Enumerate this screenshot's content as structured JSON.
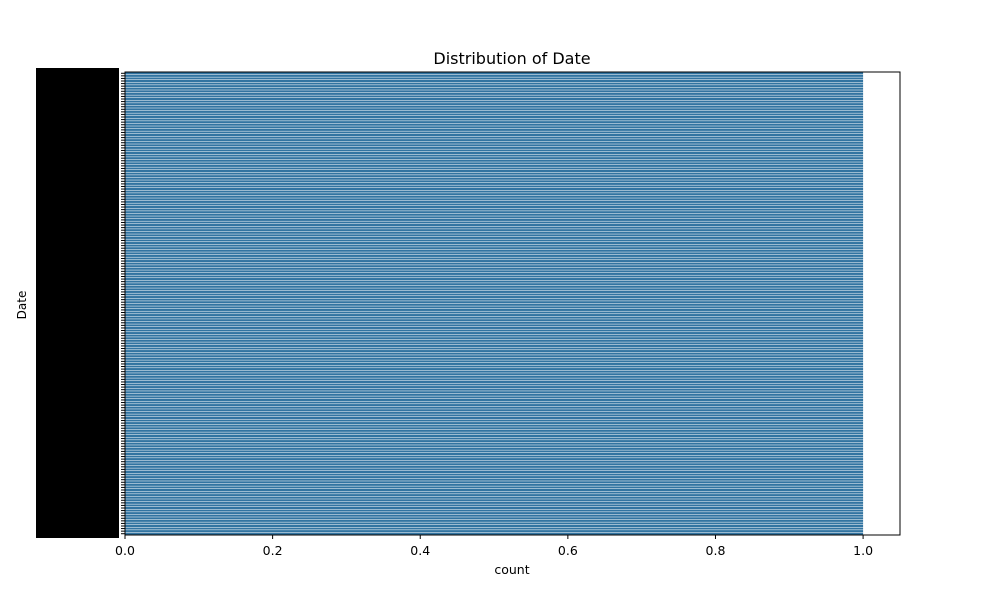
{
  "chart_data": {
    "type": "bar",
    "orientation": "horizontal",
    "title": "Distribution of Date",
    "xlabel": "count",
    "ylabel": "Date",
    "xlim": [
      0,
      1.05
    ],
    "xticks": [
      "0.0",
      "0.2",
      "0.4",
      "0.6",
      "0.8",
      "1.0"
    ],
    "xtick_values": [
      0,
      0.2,
      0.4,
      0.6,
      0.8,
      1.0
    ],
    "category_count": 180,
    "value_per_category": 1,
    "grid": false,
    "legend": "none",
    "colors": {
      "bar": "#3274a1",
      "bar_edge": "#ffffff",
      "axis": "#000000"
    }
  }
}
